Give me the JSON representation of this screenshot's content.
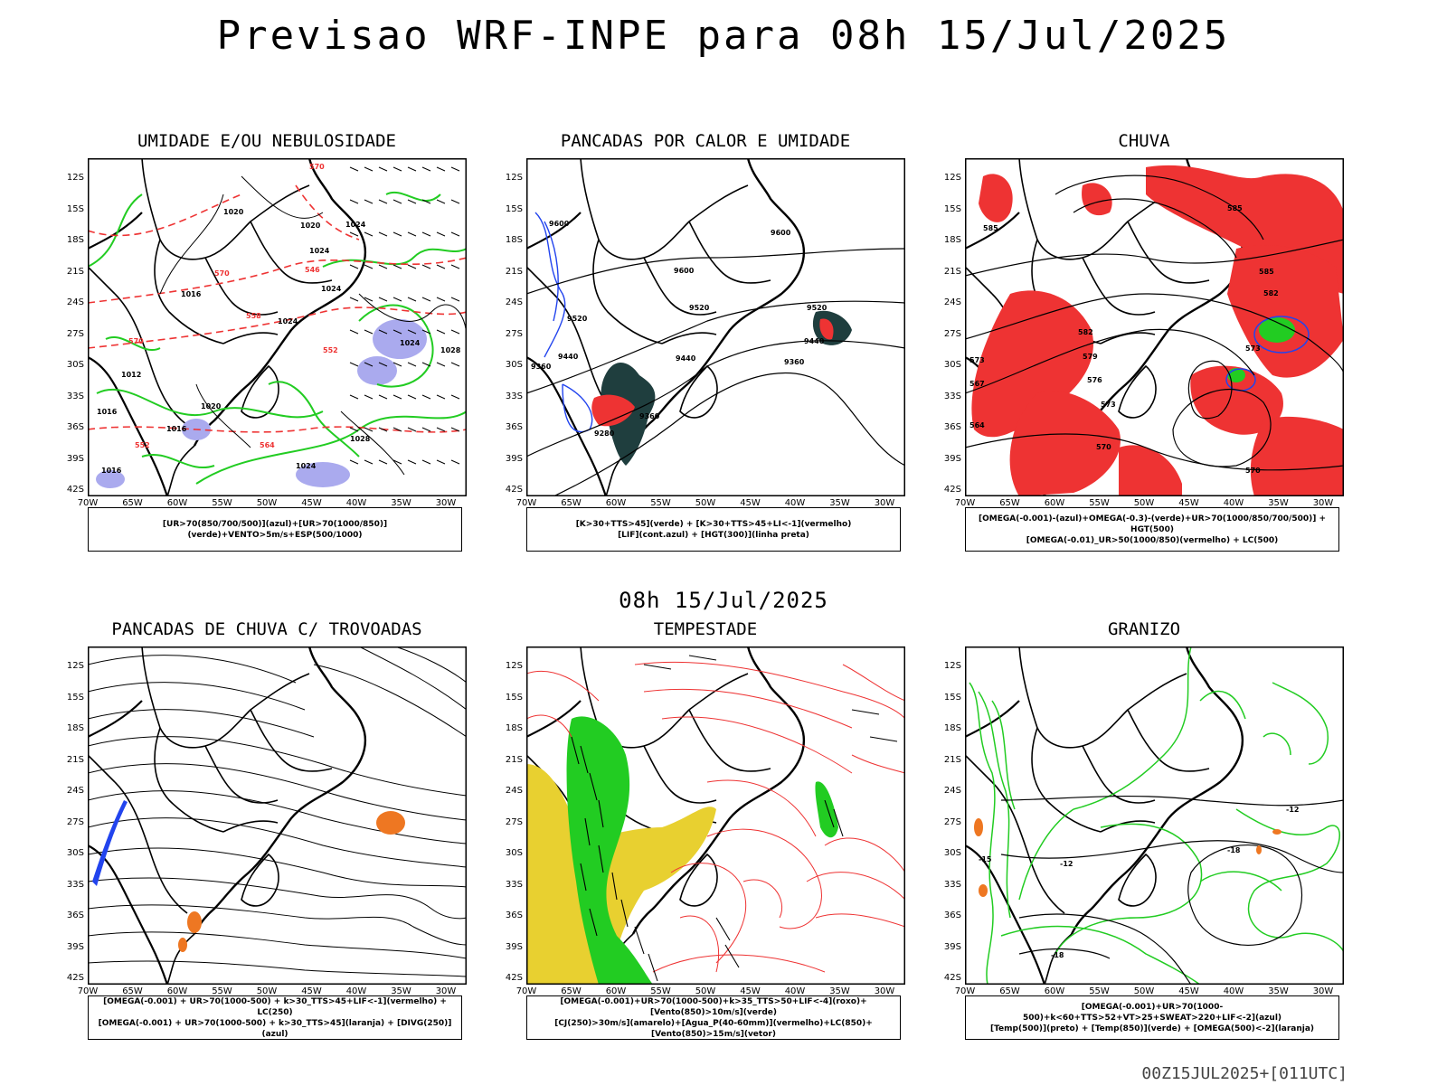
{
  "title": "Previsao WRF-INPE  para 08h 15/Jul/2025",
  "mid_title": "08h 15/Jul/2025",
  "footer": "00Z15JUL2025+[011UTC]",
  "axes": {
    "lat_labels": [
      "12S",
      "15S",
      "18S",
      "21S",
      "24S",
      "27S",
      "30S",
      "33S",
      "36S",
      "39S",
      "42S"
    ],
    "lon_labels": [
      "70W",
      "65W",
      "60W",
      "55W",
      "50W",
      "45W",
      "40W",
      "35W",
      "30W"
    ]
  },
  "colors": {
    "green": "#22cc22",
    "red": "#ee3333",
    "blue": "#2244ee",
    "lavender": "#aaaaee",
    "orange": "#ee7722",
    "yellow": "#e8d030",
    "darkteal": "#1f3e3e"
  },
  "panels": [
    {
      "id": "umidade",
      "title": "UMIDADE E/OU NEBULOSIDADE",
      "legend": [
        "[UR>70(850/700/500)](azul)+[UR>70(1000/850)](verde)+VENTO>5m/s+ESP(500/1000)"
      ],
      "contour_labels": [
        "1024",
        "1020",
        "1016",
        "1028",
        "1012",
        "570",
        "564",
        "558",
        "552",
        "546"
      ]
    },
    {
      "id": "pancadas-calor",
      "title": "PANCADAS POR CALOR E UMIDADE",
      "legend": [
        "[K>30+TTS>45](verde) + [K>30+TTS>45+LI<-1](vermelho)",
        "[LIF](cont.azul) + [HGT(300)](linha preta)"
      ],
      "contour_labels": [
        "9600",
        "9520",
        "9440",
        "9360",
        "9280"
      ]
    },
    {
      "id": "chuva",
      "title": "CHUVA",
      "legend": [
        "[OMEGA(-0.001)-(azul)+OMEGA(-0.3)-(verde)+UR>70(1000/850/700/500)] + HGT(500)",
        "[OMEGA(-0.01)_UR>50(1000/850)(vermelho) + LC(500)"
      ],
      "contour_labels": [
        "585",
        "582",
        "579",
        "576",
        "573",
        "570",
        "567",
        "564"
      ]
    },
    {
      "id": "pancadas-trovoadas",
      "title": "PANCADAS DE CHUVA C/ TROVOADAS",
      "legend": [
        "[OMEGA(-0.001) + UR>70(1000-500) + k>30_TTS>45+LIF<-1](vermelho) + LC(250)",
        "[OMEGA(-0.001) + UR>70(1000-500) + k>30_TTS>45](laranja) + [DIVG(250)](azul)"
      ],
      "contour_labels": []
    },
    {
      "id": "tempestade",
      "title": "TEMPESTADE",
      "legend": [
        "[OMEGA(-0.001)+UR>70(1000-500)+k>35_TTS>50+LIF<-4](roxo)+[Vento(850)>10m/s](verde)",
        "[CJ(250)>30m/s](amarelo)+[Agua_P(40-60mm)](vermelho)+LC(850)+[Vento(850)>15m/s](vetor)"
      ],
      "contour_labels": []
    },
    {
      "id": "granizo",
      "title": "GRANIZO",
      "legend": [
        "[OMEGA(-0.001)+UR>70(1000-500)+k<60+TTS>52+VT>25+SWEAT>220+LIF<-2](azul)",
        "[Temp(500)](preto) + [Temp(850)](verde) + [OMEGA(500)<-2](laranja)"
      ],
      "contour_labels": [
        "-12",
        "-15",
        "-18"
      ]
    }
  ]
}
